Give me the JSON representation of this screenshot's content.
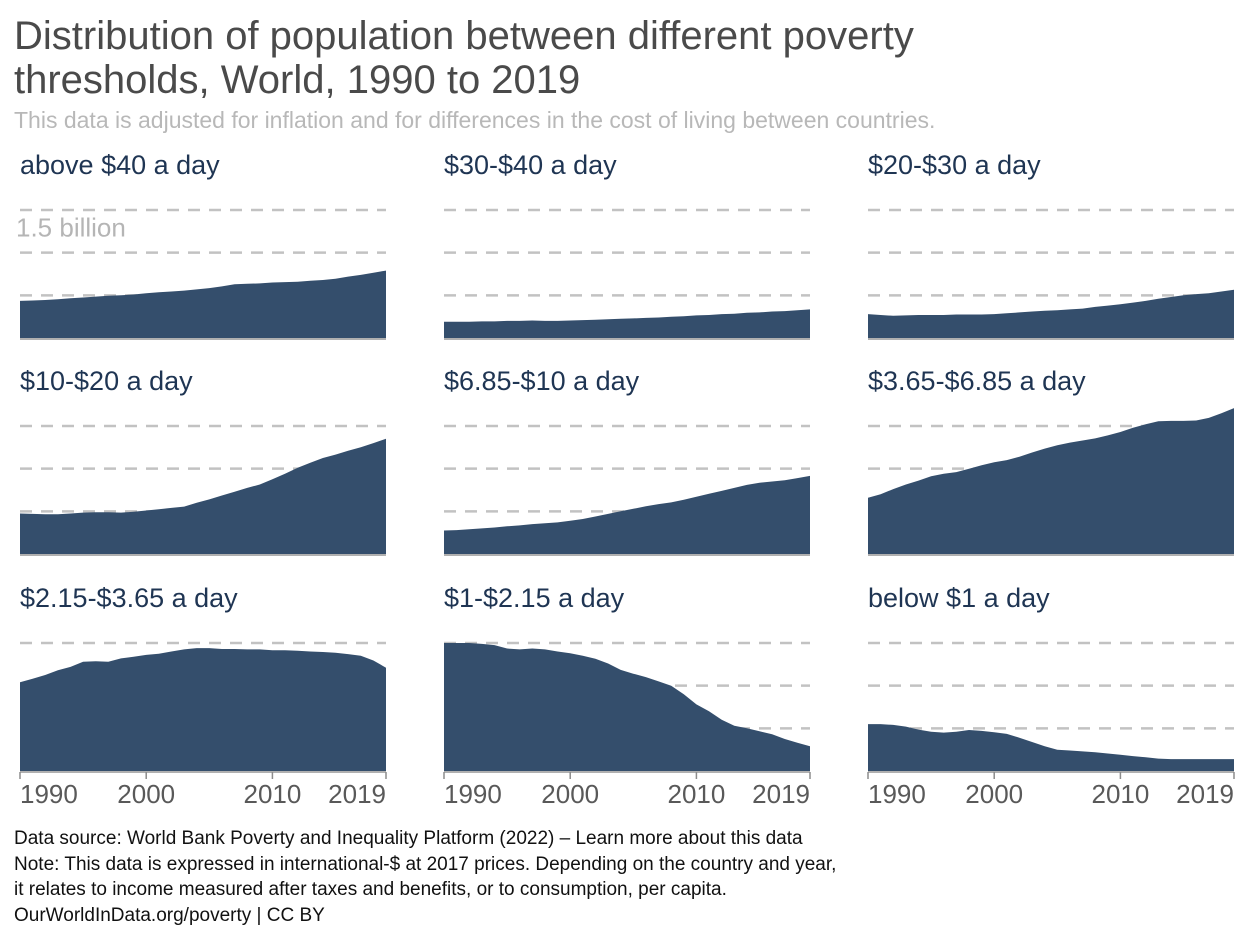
{
  "title": "Distribution of population between different poverty thresholds, World, 1990 to 2019",
  "subtitle": "This data is adjusted for inflation and for differences in the cost of living between countries.",
  "colors": {
    "area": "#344e6c",
    "title": "#4a4a4a",
    "panel_title": "#1f3553",
    "grid": "#c2c2c2",
    "axis_text": "#595959"
  },
  "footer": {
    "line1": "Data source: World Bank Poverty and Inequality Platform (2022) – Learn more about this data",
    "line2": "Note: This data is expressed in international-$ at 2017 prices. Depending on the country and year,",
    "line3": "it relates to income measured after taxes and benefits, or to consumption, per capita.",
    "line4": "OurWorldInData.org/poverty | CC BY"
  },
  "chart_data": {
    "type": "area",
    "layout": "small-multiples",
    "x": [
      1990,
      1991,
      1992,
      1993,
      1994,
      1995,
      1996,
      1997,
      1998,
      1999,
      2000,
      2001,
      2002,
      2003,
      2004,
      2005,
      2006,
      2007,
      2008,
      2009,
      2010,
      2011,
      2012,
      2013,
      2014,
      2015,
      2016,
      2017,
      2018,
      2019
    ],
    "ylim": [
      0,
      3
    ],
    "yticks": [
      1.0,
      2.0,
      3.0
    ],
    "ytick_label": "1.5 billion",
    "xticks": [
      1990,
      2000,
      2010,
      2019
    ],
    "grid": "dashed horizontal",
    "series": [
      {
        "name": "above $40 a day",
        "values": [
          0.87,
          0.88,
          0.89,
          0.91,
          0.93,
          0.95,
          0.97,
          0.99,
          1.0,
          1.02,
          1.05,
          1.07,
          1.09,
          1.11,
          1.14,
          1.17,
          1.21,
          1.26,
          1.27,
          1.28,
          1.3,
          1.31,
          1.32,
          1.34,
          1.36,
          1.39,
          1.44,
          1.48,
          1.53,
          1.58
        ]
      },
      {
        "name": "$30-$40 a day",
        "values": [
          0.38,
          0.38,
          0.38,
          0.39,
          0.39,
          0.4,
          0.4,
          0.41,
          0.4,
          0.4,
          0.41,
          0.42,
          0.43,
          0.44,
          0.45,
          0.46,
          0.47,
          0.48,
          0.5,
          0.51,
          0.53,
          0.54,
          0.56,
          0.57,
          0.59,
          0.6,
          0.62,
          0.63,
          0.65,
          0.67
        ]
      },
      {
        "name": "$20-$30 a day",
        "values": [
          0.56,
          0.54,
          0.52,
          0.53,
          0.54,
          0.54,
          0.54,
          0.55,
          0.55,
          0.55,
          0.56,
          0.58,
          0.6,
          0.62,
          0.64,
          0.65,
          0.67,
          0.69,
          0.73,
          0.76,
          0.79,
          0.83,
          0.87,
          0.92,
          0.96,
          1.0,
          1.03,
          1.05,
          1.09,
          1.13
        ]
      },
      {
        "name": "$10-$20 a day",
        "values": [
          0.95,
          0.94,
          0.93,
          0.93,
          0.95,
          0.97,
          0.98,
          0.98,
          0.97,
          0.99,
          1.02,
          1.05,
          1.08,
          1.11,
          1.2,
          1.28,
          1.37,
          1.46,
          1.55,
          1.63,
          1.75,
          1.88,
          2.02,
          2.14,
          2.25,
          2.33,
          2.42,
          2.5,
          2.6,
          2.7
        ]
      },
      {
        "name": "$6.85-$10 a day",
        "values": [
          0.55,
          0.56,
          0.58,
          0.6,
          0.62,
          0.65,
          0.67,
          0.7,
          0.72,
          0.74,
          0.78,
          0.82,
          0.88,
          0.94,
          1.0,
          1.06,
          1.12,
          1.17,
          1.21,
          1.27,
          1.34,
          1.41,
          1.48,
          1.55,
          1.62,
          1.67,
          1.7,
          1.73,
          1.78,
          1.83
        ]
      },
      {
        "name": "$3.65-$6.85 a day",
        "values": [
          1.32,
          1.4,
          1.52,
          1.63,
          1.72,
          1.82,
          1.88,
          1.92,
          2.0,
          2.08,
          2.15,
          2.2,
          2.28,
          2.38,
          2.47,
          2.55,
          2.61,
          2.66,
          2.71,
          2.78,
          2.86,
          2.96,
          3.04,
          3.11,
          3.12,
          3.12,
          3.13,
          3.19,
          3.3,
          3.42
        ]
      },
      {
        "name": "$2.15-$3.65 a day",
        "values": [
          2.08,
          2.16,
          2.25,
          2.36,
          2.44,
          2.56,
          2.57,
          2.56,
          2.64,
          2.68,
          2.72,
          2.75,
          2.8,
          2.85,
          2.88,
          2.88,
          2.86,
          2.86,
          2.85,
          2.85,
          2.83,
          2.83,
          2.82,
          2.8,
          2.79,
          2.77,
          2.74,
          2.7,
          2.59,
          2.42
        ]
      },
      {
        "name": "$1-$2.15 a day",
        "values": [
          3.0,
          3.0,
          3.0,
          2.98,
          2.95,
          2.87,
          2.85,
          2.87,
          2.85,
          2.8,
          2.76,
          2.7,
          2.63,
          2.52,
          2.37,
          2.28,
          2.2,
          2.1,
          2.0,
          1.8,
          1.56,
          1.4,
          1.2,
          1.06,
          1.0,
          0.93,
          0.86,
          0.75,
          0.66,
          0.58
        ]
      },
      {
        "name": "below $1 a day",
        "values": [
          1.1,
          1.1,
          1.08,
          1.04,
          0.97,
          0.92,
          0.9,
          0.92,
          0.96,
          0.94,
          0.91,
          0.87,
          0.78,
          0.68,
          0.58,
          0.5,
          0.48,
          0.46,
          0.44,
          0.41,
          0.38,
          0.35,
          0.32,
          0.29,
          0.28,
          0.28,
          0.28,
          0.28,
          0.28,
          0.28
        ]
      }
    ]
  }
}
